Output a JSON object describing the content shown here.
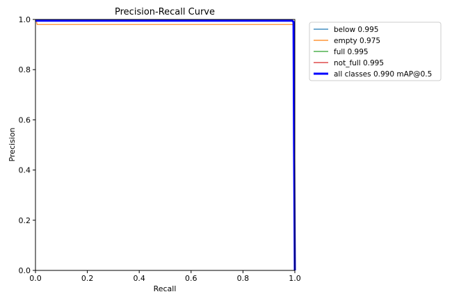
{
  "chart_data": {
    "type": "line",
    "title": "Precision-Recall Curve",
    "xlabel": "Recall",
    "ylabel": "Precision",
    "xlim": [
      0.0,
      1.0
    ],
    "ylim": [
      0.0,
      1.0
    ],
    "xticks": [
      "0.0",
      "0.2",
      "0.4",
      "0.6",
      "0.8",
      "1.0"
    ],
    "yticks": [
      "0.0",
      "0.2",
      "0.4",
      "0.6",
      "0.8",
      "1.0"
    ],
    "grid": false,
    "legend_position": "outside-top-right",
    "series": [
      {
        "name": "below 0.995",
        "color": "#1f77b4",
        "linewidth": "thin",
        "x": [
          0.0,
          0.99,
          0.996,
          0.998,
          1.0
        ],
        "y": [
          1.0,
          1.0,
          0.99,
          0.5,
          0.0
        ]
      },
      {
        "name": "empty 0.975",
        "color": "#ff7f0e",
        "linewidth": "thin",
        "x": [
          0.0,
          0.003,
          0.006,
          0.99,
          0.996,
          0.998,
          1.0
        ],
        "y": [
          1.0,
          1.0,
          0.98,
          0.98,
          0.975,
          0.5,
          0.0
        ]
      },
      {
        "name": "full 0.995",
        "color": "#2ca02c",
        "linewidth": "thin",
        "x": [
          0.0,
          0.99,
          0.996,
          0.998,
          1.0
        ],
        "y": [
          1.0,
          1.0,
          0.99,
          0.5,
          0.0
        ]
      },
      {
        "name": "not_full 0.995",
        "color": "#d62728",
        "linewidth": "thin",
        "x": [
          0.0,
          0.99,
          0.996,
          0.998,
          1.0
        ],
        "y": [
          1.0,
          1.0,
          0.99,
          0.5,
          0.0
        ]
      },
      {
        "name": "all classes 0.990 mAP@0.5",
        "color": "#0000ff",
        "linewidth": "thick",
        "x": [
          0.0,
          0.99,
          0.995,
          0.997,
          1.0
        ],
        "y": [
          0.995,
          0.995,
          0.99,
          0.5,
          0.0
        ]
      }
    ]
  }
}
